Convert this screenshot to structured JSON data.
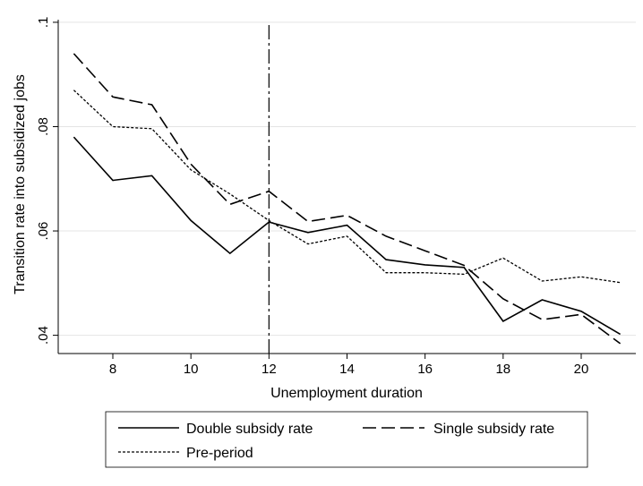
{
  "chart_data": {
    "type": "line",
    "title": "",
    "xlabel": "Unemployment duration",
    "ylabel": "Transition rate into subsidized jobs",
    "xlim": [
      6.6,
      21.4
    ],
    "ylim": [
      0.0365,
      0.1005
    ],
    "x_ticks": [
      8,
      10,
      12,
      14,
      16,
      18,
      20
    ],
    "x_tick_labels": [
      "8",
      "10",
      "12",
      "14",
      "16",
      "18",
      "20"
    ],
    "y_ticks": [
      0.04,
      0.06,
      0.08,
      0.1
    ],
    "y_tick_labels": [
      ".04",
      ".06",
      ".08",
      ".1"
    ],
    "grid": true,
    "reference_line": {
      "x": 12
    },
    "legend_position": "bottom",
    "x": [
      7,
      8,
      9,
      10,
      11,
      12,
      13,
      14,
      15,
      16,
      17,
      18,
      19,
      20,
      21
    ],
    "series": [
      {
        "name": "Double subsidy rate",
        "style": "solid",
        "values": [
          0.078,
          0.0697,
          0.0706,
          0.062,
          0.0557,
          0.0617,
          0.0597,
          0.0611,
          0.0545,
          0.0535,
          0.053,
          0.0427,
          0.0468,
          0.0446,
          0.0402
        ]
      },
      {
        "name": "Single subsidy rate",
        "style": "long-dash",
        "values": [
          0.094,
          0.0857,
          0.0842,
          0.0728,
          0.0651,
          0.0676,
          0.0618,
          0.063,
          0.059,
          0.0562,
          0.0534,
          0.047,
          0.043,
          0.044,
          0.0384
        ]
      },
      {
        "name": "Pre-period",
        "style": "short-dash",
        "values": [
          0.087,
          0.08,
          0.0796,
          0.0717,
          0.0671,
          0.062,
          0.0575,
          0.059,
          0.052,
          0.052,
          0.0517,
          0.0548,
          0.0504,
          0.0512,
          0.0501
        ]
      }
    ]
  }
}
